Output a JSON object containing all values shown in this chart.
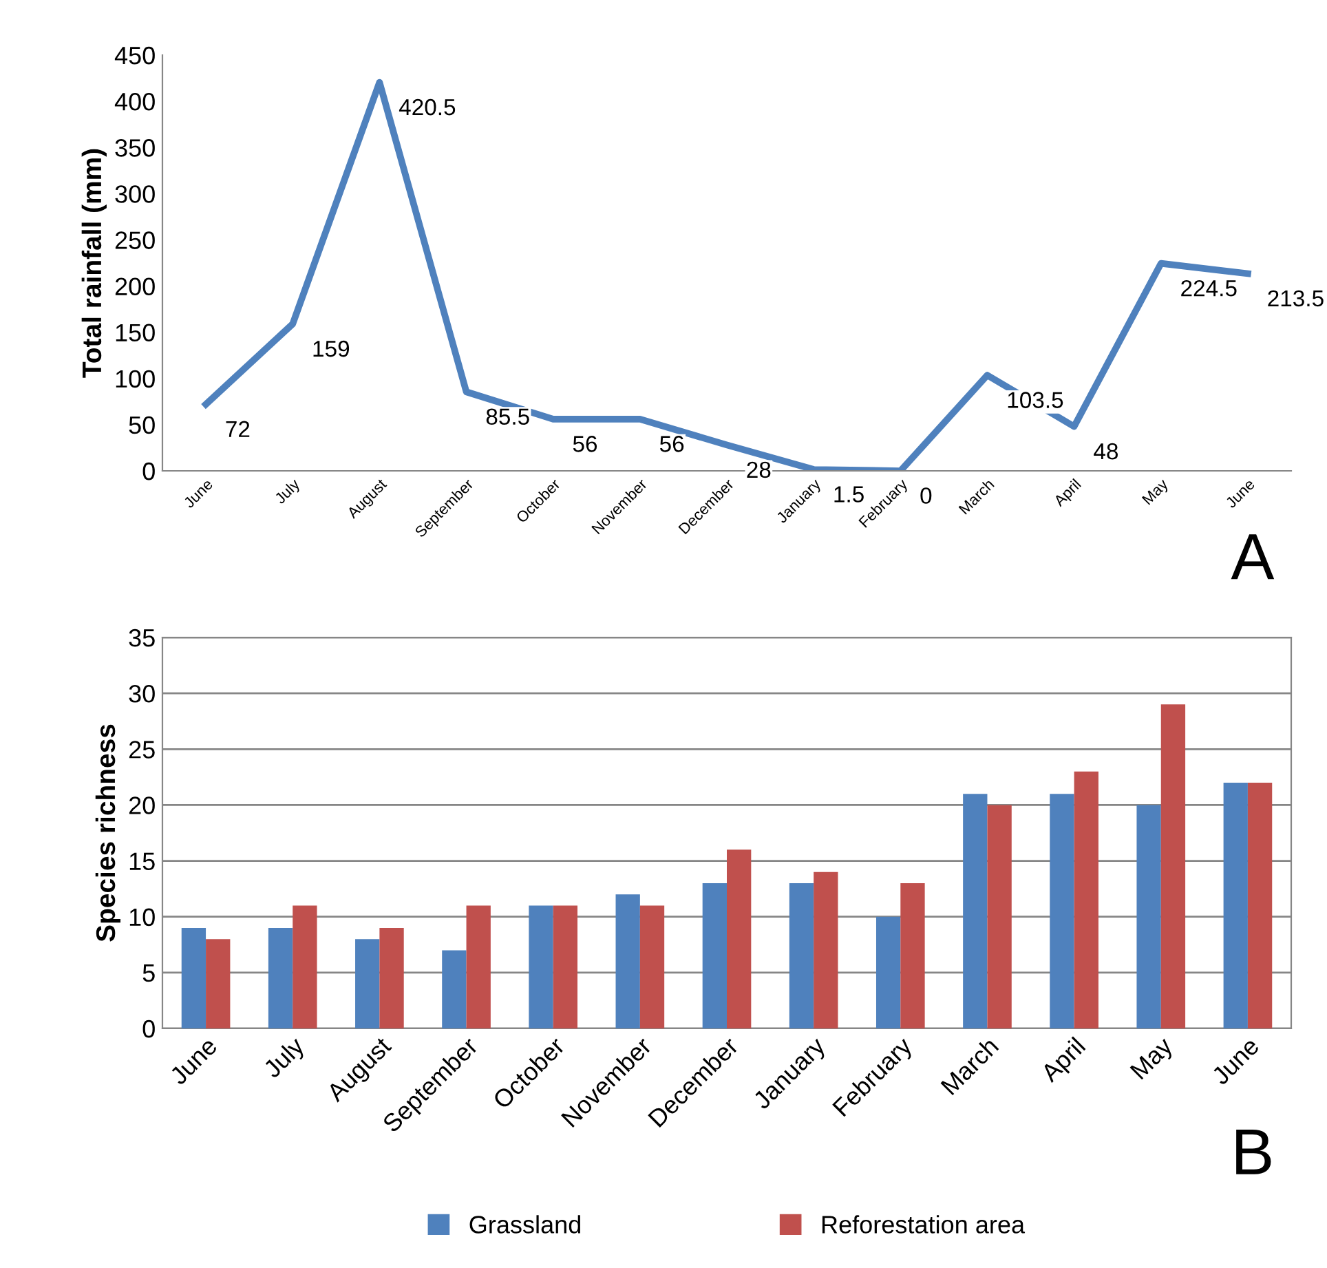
{
  "chart_data": [
    {
      "type": "line",
      "ylabel": "Total rainfall (mm)",
      "categories": [
        "June",
        "July",
        "August",
        "September",
        "October",
        "November",
        "December",
        "January",
        "February",
        "March",
        "April",
        "May",
        "June"
      ],
      "series": [
        {
          "color": "#4f81bd",
          "values": [
            72,
            159,
            420.5,
            85.5,
            56,
            56,
            28,
            1.5,
            0,
            103.5,
            48,
            224.5,
            213.5
          ]
        }
      ],
      "ylim": [
        0,
        450
      ],
      "yticks": [
        0,
        50,
        100,
        150,
        200,
        250,
        300,
        350,
        400,
        450
      ],
      "data_labels": true,
      "grid": false,
      "legend": false,
      "marker": "none",
      "line_style": "solid",
      "annotations": [
        "A"
      ]
    },
    {
      "type": "bar",
      "ylabel": "Species richness",
      "categories": [
        "June",
        "July",
        "August",
        "September",
        "October",
        "November",
        "December",
        "January",
        "February",
        "March",
        "April",
        "May",
        "June"
      ],
      "series": [
        {
          "name": "Grassland",
          "color": "#4f81bd",
          "values": [
            9,
            9,
            8,
            7,
            11,
            12,
            13,
            13,
            10,
            21,
            21,
            20,
            22
          ]
        },
        {
          "name": "Reforestation area",
          "color": "#c0504d",
          "values": [
            8,
            11,
            9,
            11,
            11,
            11,
            16,
            14,
            13,
            20,
            23,
            29,
            22
          ]
        }
      ],
      "ylim": [
        0,
        35
      ],
      "yticks": [
        0,
        5,
        10,
        15,
        20,
        25,
        30,
        35
      ],
      "grid": "y",
      "legend": "bottom",
      "annotations": [
        "B"
      ]
    }
  ]
}
